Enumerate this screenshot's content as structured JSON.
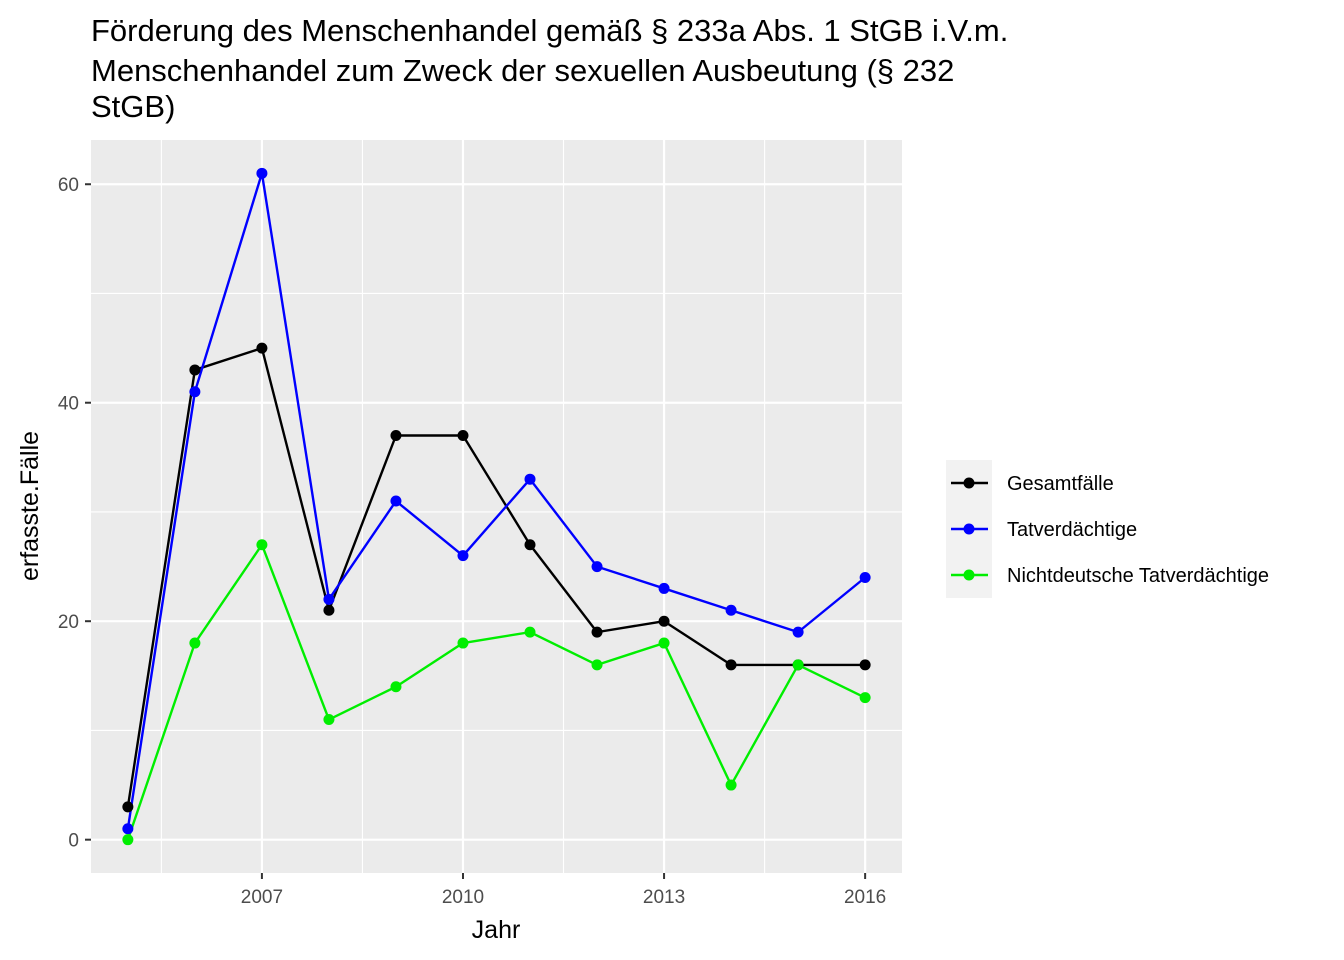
{
  "chart_data": {
    "type": "line",
    "title_lines": [
      "Förderung des Menschenhandel gemäß § 233a Abs. 1 StGB i.V.m.",
      "Menschenhandel zum Zweck der sexuellen Ausbeutung (§ 232",
      "StGB)"
    ],
    "xlabel": "Jahr",
    "ylabel": "erfasste.Fälle",
    "x": [
      2005,
      2006,
      2007,
      2008,
      2009,
      2010,
      2011,
      2012,
      2013,
      2014,
      2015,
      2016
    ],
    "xlim": [
      2004.45,
      2016.55
    ],
    "ylim": [
      -3.05,
      64.05
    ],
    "x_ticks": [
      2007,
      2010,
      2013,
      2016
    ],
    "x_tick_labels": [
      "2007",
      "2010",
      "2013",
      "2016"
    ],
    "x_minor_ticks": [
      2005.5,
      2008.5,
      2011.5,
      2014.5
    ],
    "y_ticks": [
      0,
      20,
      40,
      60
    ],
    "y_tick_labels": [
      "0",
      "20",
      "40",
      "60"
    ],
    "y_minor_ticks": [
      10,
      30,
      50
    ],
    "grid": true,
    "legend_position": "right",
    "series": [
      {
        "name": "Gesamtfälle",
        "color": "#000000",
        "values": [
          3,
          43,
          45,
          21,
          37,
          37,
          27,
          19,
          20,
          16,
          16,
          16
        ]
      },
      {
        "name": "Tatverdächtige",
        "color": "#0000ff",
        "values": [
          1,
          41,
          61,
          22,
          31,
          26,
          33,
          25,
          23,
          21,
          19,
          24
        ]
      },
      {
        "name": "Nichtdeutsche Tatverdächtige",
        "color": "#00ee00",
        "values": [
          0,
          18,
          27,
          11,
          14,
          18,
          19,
          16,
          18,
          5,
          16,
          13
        ]
      }
    ]
  }
}
